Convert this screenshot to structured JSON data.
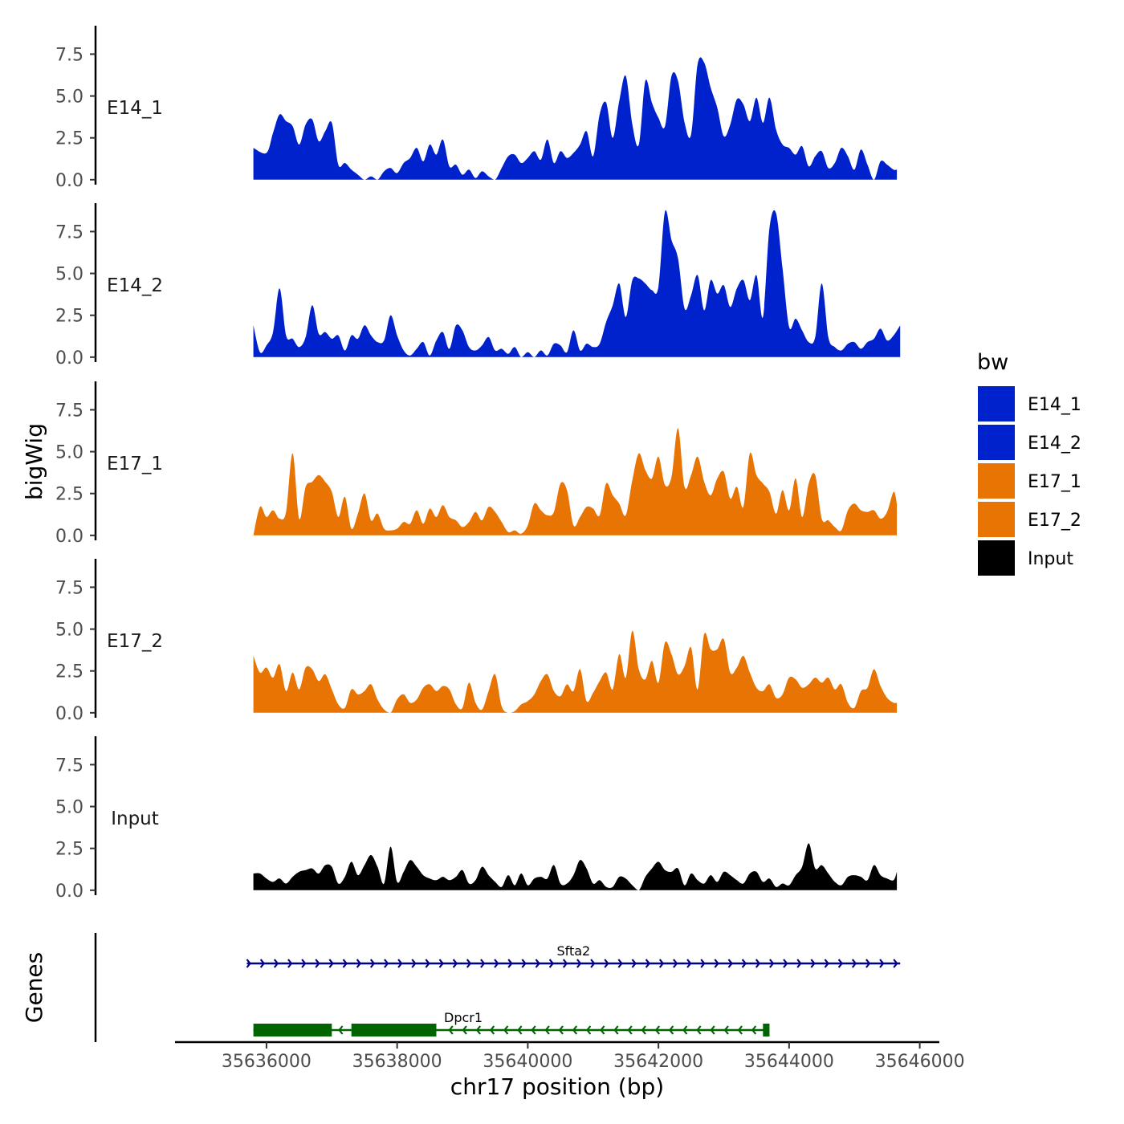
{
  "chart_data": {
    "type": "area",
    "chromosome": "chr17",
    "xlabel": "chr17 position (bp)",
    "ylabel": "bigWig",
    "genes_label": "Genes",
    "xlim": [
      35634600,
      35646300
    ],
    "ylim": [
      -0.2,
      9.2
    ],
    "x_ticks": [
      35636000,
      35638000,
      35640000,
      35642000,
      35644000,
      35646000
    ],
    "x_tick_labels": [
      "35636000",
      "35638000",
      "35640000",
      "35642000",
      "35644000",
      "35646000"
    ],
    "y_ticks": [
      0,
      2.5,
      5,
      7.5
    ],
    "y_tick_labels": [
      "0.0",
      "2.5",
      "5.0",
      "7.5"
    ],
    "legend": {
      "title": "bw",
      "entries": [
        {
          "label": "E14_1",
          "color": "#0022cc"
        },
        {
          "label": "E14_2",
          "color": "#0022cc"
        },
        {
          "label": "E17_1",
          "color": "#e87503"
        },
        {
          "label": "E17_2",
          "color": "#e87503"
        },
        {
          "label": "Input",
          "color": "#000000"
        }
      ]
    },
    "series": [
      {
        "name": "E14_1",
        "color": "#0022cc",
        "x": [
          35635800,
          35636000,
          35636100,
          35636200,
          35636300,
          35636400,
          35636500,
          35636600,
          35636700,
          35636800,
          35636900,
          35637000,
          35637100,
          35637200,
          35637300,
          35637400,
          35637500,
          35637600,
          35637700,
          35637800,
          35637900,
          35638000,
          35638100,
          35638200,
          35638300,
          35638400,
          35638500,
          35638600,
          35638700,
          35638800,
          35638900,
          35639000,
          35639100,
          35639200,
          35639300,
          35639400,
          35639500,
          35639600,
          35639700,
          35639800,
          35639900,
          35640000,
          35640100,
          35640200,
          35640300,
          35640400,
          35640500,
          35640600,
          35640700,
          35640800,
          35640900,
          35641000,
          35641100,
          35641200,
          35641300,
          35641400,
          35641500,
          35641600,
          35641700,
          35641800,
          35641900,
          35642000,
          35642100,
          35642200,
          35642300,
          35642400,
          35642500,
          35642600,
          35642700,
          35642800,
          35642900,
          35643000,
          35643100,
          35643200,
          35643300,
          35643400,
          35643500,
          35643600,
          35643700,
          35643800,
          35643900,
          35644000,
          35644100,
          35644200,
          35644300,
          35644400,
          35644500,
          35644600,
          35644700,
          35644800,
          35644900,
          35645000,
          35645100,
          35645200,
          35645300,
          35645400,
          35645500,
          35645600,
          35645650
        ],
        "y": [
          1.9,
          1.6,
          2.8,
          3.9,
          3.5,
          3.2,
          2.1,
          3.3,
          3.6,
          2.3,
          2.9,
          3.4,
          0.9,
          1.0,
          0.6,
          0.3,
          0.0,
          0.2,
          0.0,
          0.5,
          0.7,
          0.4,
          1.0,
          1.3,
          1.9,
          1.1,
          2.1,
          1.5,
          2.4,
          0.8,
          0.9,
          0.3,
          0.6,
          0.1,
          0.5,
          0.2,
          0.0,
          0.7,
          1.4,
          1.5,
          1.0,
          1.3,
          1.7,
          1.2,
          2.4,
          1.0,
          1.7,
          1.3,
          1.6,
          2.1,
          2.9,
          1.4,
          3.9,
          4.6,
          2.5,
          4.7,
          6.2,
          3.3,
          2.1,
          5.9,
          4.6,
          3.7,
          3.2,
          6.2,
          5.9,
          3.4,
          2.7,
          6.9,
          7.0,
          5.5,
          4.3,
          2.6,
          3.3,
          4.8,
          4.5,
          3.5,
          4.9,
          3.4,
          4.9,
          3.0,
          2.1,
          1.9,
          1.5,
          2.0,
          0.8,
          1.4,
          1.7,
          0.7,
          1.0,
          1.9,
          1.4,
          0.6,
          1.8,
          0.9,
          0.0,
          1.1,
          0.9,
          0.6,
          0.6
        ]
      },
      {
        "name": "E14_2",
        "color": "#0022cc",
        "x": [
          35635800,
          35635900,
          35636000,
          35636100,
          35636200,
          35636300,
          35636400,
          35636500,
          35636600,
          35636700,
          35636800,
          35636900,
          35637000,
          35637100,
          35637200,
          35637300,
          35637400,
          35637500,
          35637600,
          35637700,
          35637800,
          35637900,
          35638000,
          35638100,
          35638200,
          35638300,
          35638400,
          35638500,
          35638600,
          35638700,
          35638800,
          35638900,
          35639000,
          35639100,
          35639200,
          35639300,
          35639400,
          35639500,
          35639600,
          35639700,
          35639800,
          35639900,
          35640000,
          35640100,
          35640200,
          35640300,
          35640400,
          35640500,
          35640600,
          35640700,
          35640800,
          35640900,
          35641000,
          35641100,
          35641200,
          35641300,
          35641400,
          35641500,
          35641600,
          35641700,
          35641800,
          35641900,
          35642000,
          35642100,
          35642200,
          35642300,
          35642400,
          35642500,
          35642600,
          35642700,
          35642800,
          35642900,
          35643000,
          35643100,
          35643200,
          35643300,
          35643400,
          35643500,
          35643600,
          35643700,
          35643800,
          35643900,
          35644000,
          35644100,
          35644200,
          35644300,
          35644400,
          35644500,
          35644600,
          35644700,
          35644800,
          35644900,
          35645000,
          35645100,
          35645200,
          35645300,
          35645400,
          35645500,
          35645600,
          35645700
        ],
        "y": [
          1.9,
          0.3,
          0.7,
          1.5,
          4.1,
          1.3,
          1.1,
          0.6,
          1.2,
          3.1,
          1.4,
          1.5,
          1.1,
          1.3,
          0.4,
          1.3,
          1.1,
          1.9,
          1.3,
          0.9,
          1.0,
          2.5,
          1.3,
          0.4,
          0.1,
          0.5,
          0.9,
          0.1,
          1.0,
          1.5,
          0.5,
          1.9,
          1.6,
          0.6,
          0.4,
          0.7,
          1.2,
          0.4,
          0.5,
          0.2,
          0.6,
          0.0,
          0.3,
          0.0,
          0.4,
          0.1,
          0.8,
          0.7,
          0.3,
          1.6,
          0.4,
          0.8,
          0.6,
          0.8,
          2.1,
          3.1,
          4.4,
          2.4,
          4.6,
          4.7,
          4.4,
          4.0,
          4.2,
          8.7,
          7.0,
          5.9,
          2.9,
          3.7,
          4.9,
          2.8,
          4.6,
          3.8,
          4.3,
          3.0,
          4.1,
          4.6,
          3.4,
          4.9,
          2.4,
          7.7,
          8.6,
          5.3,
          1.8,
          2.3,
          1.6,
          0.9,
          1.2,
          4.4,
          1.2,
          0.6,
          0.4,
          0.8,
          0.9,
          0.5,
          0.9,
          1.1,
          1.7,
          1.0,
          1.3,
          1.9
        ]
      },
      {
        "name": "E17_1",
        "color": "#e87503",
        "x": [
          35635800,
          35635900,
          35636000,
          35636100,
          35636200,
          35636300,
          35636400,
          35636500,
          35636600,
          35636700,
          35636800,
          35636900,
          35637000,
          35637100,
          35637200,
          35637300,
          35637400,
          35637500,
          35637600,
          35637700,
          35637800,
          35637900,
          35638000,
          35638100,
          35638200,
          35638300,
          35638400,
          35638500,
          35638600,
          35638700,
          35638800,
          35638900,
          35639000,
          35639100,
          35639200,
          35639300,
          35639400,
          35639500,
          35639600,
          35639700,
          35639800,
          35639900,
          35640000,
          35640100,
          35640200,
          35640300,
          35640400,
          35640500,
          35640600,
          35640700,
          35640800,
          35640900,
          35641000,
          35641100,
          35641200,
          35641300,
          35641400,
          35641500,
          35641600,
          35641700,
          35641800,
          35641900,
          35642000,
          35642100,
          35642200,
          35642300,
          35642400,
          35642500,
          35642600,
          35642700,
          35642800,
          35642900,
          35643000,
          35643100,
          35643200,
          35643300,
          35643400,
          35643500,
          35643600,
          35643700,
          35643800,
          35643900,
          35644000,
          35644100,
          35644200,
          35644300,
          35644400,
          35644500,
          35644600,
          35644700,
          35644800,
          35644900,
          35645000,
          35645100,
          35645200,
          35645300,
          35645400,
          35645500,
          35645600,
          35645650
        ],
        "y": [
          0.0,
          1.7,
          1.1,
          1.5,
          1.0,
          1.4,
          4.9,
          1.0,
          2.9,
          3.2,
          3.6,
          3.2,
          2.6,
          1.1,
          2.3,
          0.4,
          1.3,
          2.5,
          0.9,
          1.3,
          0.4,
          0.3,
          0.4,
          0.8,
          0.7,
          1.5,
          0.7,
          1.6,
          1.1,
          1.8,
          1.1,
          0.9,
          0.5,
          0.8,
          1.4,
          0.9,
          1.7,
          1.4,
          0.8,
          0.2,
          0.3,
          0.1,
          0.6,
          1.9,
          1.5,
          1.2,
          1.4,
          3.1,
          2.7,
          0.6,
          1.1,
          1.7,
          1.6,
          1.2,
          3.1,
          2.4,
          1.9,
          1.2,
          3.3,
          4.9,
          3.9,
          3.4,
          4.7,
          3.0,
          3.5,
          6.4,
          2.9,
          3.6,
          4.7,
          3.2,
          2.4,
          3.4,
          3.8,
          2.2,
          2.9,
          1.7,
          4.9,
          3.6,
          3.1,
          2.6,
          1.3,
          2.7,
          1.5,
          3.4,
          1.1,
          3.1,
          3.6,
          1.0,
          0.9,
          0.5,
          0.3,
          1.5,
          1.9,
          1.5,
          1.4,
          1.5,
          1.0,
          1.4,
          2.6,
          1.9
        ]
      },
      {
        "name": "E17_2",
        "color": "#e87503",
        "x": [
          35635800,
          35635900,
          35636000,
          35636100,
          35636200,
          35636300,
          35636400,
          35636500,
          35636600,
          35636700,
          35636800,
          35636900,
          35637000,
          35637100,
          35637200,
          35637300,
          35637400,
          35637500,
          35637600,
          35637700,
          35637800,
          35637900,
          35638000,
          35638100,
          35638200,
          35638300,
          35638400,
          35638500,
          35638600,
          35638700,
          35638800,
          35638900,
          35639000,
          35639100,
          35639200,
          35639300,
          35639400,
          35639500,
          35639600,
          35639700,
          35639800,
          35639900,
          35640000,
          35640100,
          35640200,
          35640300,
          35640400,
          35640500,
          35640600,
          35640700,
          35640800,
          35640900,
          35641000,
          35641100,
          35641200,
          35641300,
          35641400,
          35641500,
          35641600,
          35641700,
          35641800,
          35641900,
          35642000,
          35642100,
          35642200,
          35642300,
          35642400,
          35642500,
          35642600,
          35642700,
          35642800,
          35642900,
          35643000,
          35643100,
          35643200,
          35643300,
          35643400,
          35643500,
          35643600,
          35643700,
          35643800,
          35643900,
          35644000,
          35644100,
          35644200,
          35644300,
          35644400,
          35644500,
          35644600,
          35644700,
          35644800,
          35644900,
          35645000,
          35645100,
          35645200,
          35645300,
          35645400,
          35645500,
          35645600,
          35645650
        ],
        "y": [
          3.4,
          2.4,
          2.7,
          2.1,
          2.9,
          1.3,
          2.4,
          1.4,
          2.7,
          2.6,
          1.9,
          2.3,
          1.4,
          0.5,
          0.3,
          1.4,
          1.1,
          1.3,
          1.7,
          0.8,
          0.2,
          0.0,
          0.8,
          1.1,
          0.6,
          0.8,
          1.5,
          1.7,
          1.3,
          1.6,
          1.4,
          0.5,
          0.3,
          1.8,
          0.6,
          0.2,
          1.3,
          2.3,
          0.4,
          0.0,
          0.1,
          0.5,
          0.7,
          1.1,
          1.9,
          2.3,
          1.3,
          1.0,
          1.7,
          1.3,
          2.6,
          0.7,
          1.2,
          1.9,
          2.4,
          1.4,
          3.5,
          2.1,
          4.9,
          2.6,
          2.0,
          3.1,
          1.8,
          4.2,
          3.5,
          2.3,
          2.8,
          3.9,
          1.4,
          4.7,
          3.8,
          3.8,
          4.4,
          2.4,
          2.7,
          3.4,
          2.4,
          1.5,
          1.3,
          1.7,
          0.9,
          1.1,
          2.1,
          2.0,
          1.5,
          1.7,
          2.1,
          1.8,
          2.1,
          1.4,
          1.7,
          0.6,
          0.3,
          1.3,
          1.5,
          2.6,
          1.6,
          0.9,
          0.6,
          0.6
        ]
      },
      {
        "name": "Input",
        "color": "#000000",
        "x": [
          35635800,
          35635900,
          35636000,
          35636100,
          35636200,
          35636300,
          35636400,
          35636500,
          35636600,
          35636700,
          35636800,
          35636900,
          35637000,
          35637100,
          35637200,
          35637300,
          35637400,
          35637500,
          35637600,
          35637700,
          35637800,
          35637900,
          35638000,
          35638100,
          35638200,
          35638300,
          35638400,
          35638500,
          35638600,
          35638700,
          35638800,
          35638900,
          35639000,
          35639100,
          35639200,
          35639300,
          35639400,
          35639500,
          35639600,
          35639700,
          35639800,
          35639900,
          35640000,
          35640100,
          35640200,
          35640300,
          35640400,
          35640500,
          35640600,
          35640700,
          35640800,
          35640900,
          35641000,
          35641100,
          35641200,
          35641300,
          35641400,
          35641500,
          35641600,
          35641700,
          35641800,
          35641900,
          35642000,
          35642100,
          35642200,
          35642300,
          35642400,
          35642500,
          35642600,
          35642700,
          35642800,
          35642900,
          35643000,
          35643100,
          35643200,
          35643300,
          35643400,
          35643500,
          35643600,
          35643700,
          35643800,
          35643900,
          35644000,
          35644100,
          35644200,
          35644300,
          35644400,
          35644500,
          35644600,
          35644700,
          35644800,
          35644900,
          35645000,
          35645100,
          35645200,
          35645300,
          35645400,
          35645500,
          35645600,
          35645650
        ],
        "y": [
          1.0,
          1.0,
          0.7,
          0.5,
          0.7,
          0.4,
          0.8,
          1.1,
          1.2,
          1.3,
          1.0,
          1.5,
          1.4,
          0.4,
          0.8,
          1.7,
          0.9,
          1.5,
          2.1,
          1.4,
          0.4,
          2.6,
          0.5,
          1.1,
          1.8,
          1.4,
          0.9,
          0.7,
          0.6,
          0.8,
          0.6,
          0.8,
          1.2,
          0.4,
          0.6,
          1.4,
          0.9,
          0.5,
          0.2,
          0.9,
          0.3,
          1.0,
          0.3,
          0.7,
          0.8,
          0.7,
          1.5,
          0.4,
          0.4,
          0.9,
          1.8,
          1.3,
          0.4,
          0.6,
          0.2,
          0.2,
          0.8,
          0.7,
          0.3,
          0.0,
          0.8,
          1.3,
          1.7,
          1.2,
          1.1,
          1.3,
          0.3,
          1.0,
          0.6,
          0.4,
          0.9,
          0.5,
          1.1,
          0.9,
          0.6,
          0.4,
          1.0,
          1.1,
          0.5,
          0.7,
          0.2,
          0.4,
          0.3,
          0.9,
          1.4,
          2.8,
          1.3,
          1.5,
          1.0,
          0.5,
          0.3,
          0.8,
          0.9,
          0.8,
          0.6,
          1.5,
          0.9,
          0.7,
          0.6,
          1.1
        ]
      }
    ],
    "genes": [
      {
        "name": "Sfta2",
        "strand": "+",
        "start": 35635700,
        "end": 35645700,
        "color": "#00008b",
        "exons": []
      },
      {
        "name": "Dpcr1",
        "strand": "-",
        "start": 35635800,
        "end": 35643700,
        "color": "#006400",
        "exons": [
          [
            35635800,
            35637000
          ],
          [
            35637300,
            35638600
          ],
          [
            35643600,
            35643700
          ]
        ]
      }
    ]
  }
}
